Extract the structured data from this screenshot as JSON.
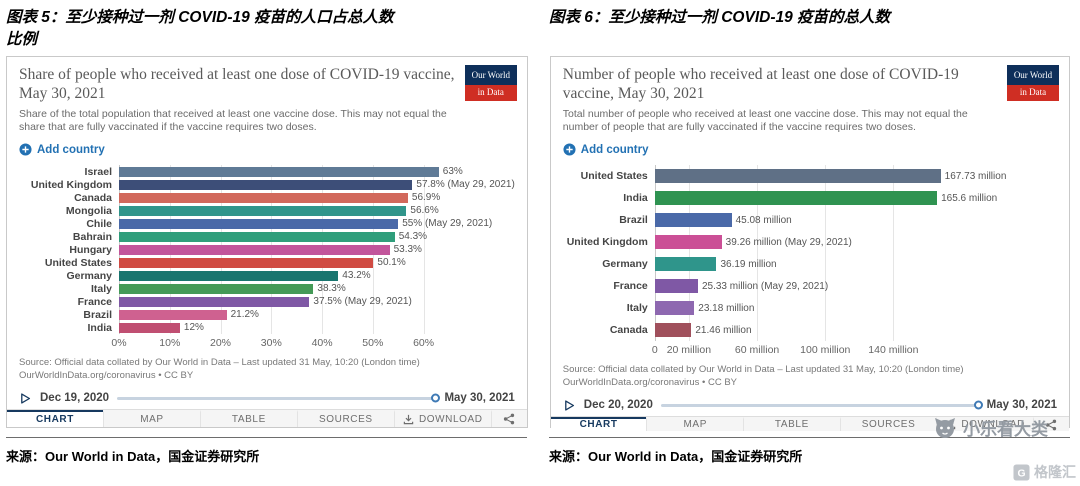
{
  "page": {
    "figure5_heading_line1": "图表 5：至少接种过一剂 COVID-19 疫苗的人口占总人数",
    "figure5_heading_line2": "比例",
    "figure6_heading": "图表 6：至少接种过一剂 COVID-19 疫苗的总人数",
    "caption_left": "来源：Our World in Data，国金证券研究所",
    "caption_right": "来源：Our World in Data，国金证券研究所",
    "watermark_text": "小乐看大类",
    "watermark_logo_text": "格隆汇"
  },
  "colors": {
    "accent_blue": "#2271b3",
    "owid_navy": "#0e2f5a",
    "logo_red": "#cf2e23",
    "timeline_blue": "#3f7ab5"
  },
  "icons": {
    "add_country": "circle-plus-icon",
    "play": "play-icon",
    "download": "download-icon",
    "share": "share-icon",
    "watermark": "cat-paw-icon"
  },
  "panels": [
    {
      "logo_line1": "Our World",
      "logo_line2": "in Data",
      "add_country_label": "Add country",
      "source_line1": "Source: Official data collated by Our World in Data – Last updated 31 May, 10:20 (London time)",
      "source_line2": "OurWorldInData.org/coronavirus • CC BY",
      "timeline_start": "Dec 19, 2020",
      "timeline_end": "May 30, 2021",
      "tabs": [
        "CHART",
        "MAP",
        "TABLE",
        "SOURCES",
        "DOWNLOAD"
      ],
      "active_tab": "CHART"
    },
    {
      "logo_line1": "Our World",
      "logo_line2": "in Data",
      "add_country_label": "Add country",
      "source_line1": "Source: Official data collated by Our World in Data – Last updated 31 May, 10:20 (London time)",
      "source_line2": "OurWorldInData.org/coronavirus • CC BY",
      "timeline_start": "Dec 20, 2020",
      "timeline_end": "May 30, 2021",
      "tabs": [
        "CHART",
        "MAP",
        "TABLE",
        "SOURCES",
        "DOWNLOAD"
      ],
      "active_tab": "CHART"
    }
  ],
  "chart_data": [
    {
      "type": "bar",
      "orientation": "horizontal",
      "title": "Share of people who received at least one dose of COVID-19 vaccine, May 30, 2021",
      "subtitle": "Share of the total population that received at least one vaccine dose. This may not equal the share that are fully vaccinated if the vaccine requires two doses.",
      "categories": [
        "Israel",
        "United Kingdom",
        "Canada",
        "Mongolia",
        "Chile",
        "Bahrain",
        "Hungary",
        "United States",
        "Germany",
        "Italy",
        "France",
        "Brazil",
        "India"
      ],
      "values": [
        63,
        57.8,
        56.9,
        56.6,
        55,
        54.3,
        53.3,
        50.1,
        43.2,
        38.3,
        37.5,
        21.2,
        12
      ],
      "value_labels": [
        "63%",
        "57.8% (May 29, 2021)",
        "56.9%",
        "56.6%",
        "55% (May 29, 2021)",
        "54.3%",
        "53.3%",
        "50.1%",
        "43.2%",
        "38.3%",
        "37.5% (May 29, 2021)",
        "21.2%",
        "12%"
      ],
      "bar_colors": [
        "#5f7a96",
        "#3d4e78",
        "#d2695c",
        "#31958b",
        "#4a69a8",
        "#2f9e7b",
        "#c2559b",
        "#d04b43",
        "#19756f",
        "#449a57",
        "#7f58a5",
        "#cf6190",
        "#c04f72"
      ],
      "xlim": [
        0,
        65
      ],
      "ticks": [
        {
          "value": 0,
          "label": "0%"
        },
        {
          "value": 10,
          "label": "10%"
        },
        {
          "value": 20,
          "label": "20%"
        },
        {
          "value": 30,
          "label": "30%"
        },
        {
          "value": 40,
          "label": "40%"
        },
        {
          "value": 50,
          "label": "50%"
        },
        {
          "value": 60,
          "label": "60%"
        }
      ],
      "grid": true,
      "legend": "none"
    },
    {
      "type": "bar",
      "orientation": "horizontal",
      "title": "Number of people who received at least one dose of COVID-19 vaccine, May 30, 2021",
      "subtitle": "Total number of people who received at least one vaccine dose. This may not equal the number of people that are fully vaccinated if the vaccine requires two doses.",
      "categories": [
        "United States",
        "India",
        "Brazil",
        "United Kingdom",
        "Germany",
        "France",
        "Italy",
        "Canada"
      ],
      "values": [
        167.73,
        165.6,
        45.08,
        39.26,
        36.19,
        25.33,
        23.18,
        21.46
      ],
      "value_labels": [
        "167.73 million",
        "165.6 million",
        "45.08 million",
        "39.26 million (May 29, 2021)",
        "36.19 million",
        "25.33 million (May 29, 2021)",
        "23.18 million",
        "21.46 million"
      ],
      "bar_colors": [
        "#5f7086",
        "#2f9351",
        "#4a69a8",
        "#cb4f96",
        "#2f958b",
        "#7f58a5",
        "#8e68b0",
        "#a0505c"
      ],
      "xlim": [
        0,
        176
      ],
      "ticks": [
        {
          "value": 0,
          "label": "0"
        },
        {
          "value": 20,
          "label": "20 million"
        },
        {
          "value": 60,
          "label": "60 million"
        },
        {
          "value": 100,
          "label": "100 million"
        },
        {
          "value": 140,
          "label": "140 million"
        }
      ],
      "grid": true,
      "legend": "none"
    }
  ]
}
